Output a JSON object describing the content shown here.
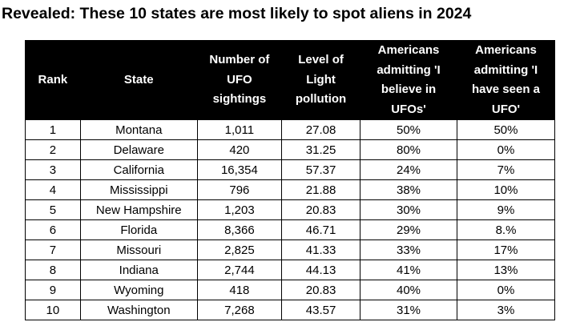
{
  "title": "Revealed: These 10 states are most likely to spot aliens in 2024",
  "table": {
    "headers": [
      "Rank",
      "State",
      "Number of UFO sightings",
      "Level of Light pollution",
      "Americans admitting 'I believe in UFOs'",
      "Americans admitting 'I have seen a UFO'"
    ],
    "rows": [
      [
        "1",
        "Montana",
        "1,011",
        "27.08",
        "50%",
        "50%"
      ],
      [
        "2",
        "Delaware",
        "420",
        "31.25",
        "80%",
        "0%"
      ],
      [
        "3",
        "California",
        "16,354",
        "57.37",
        "24%",
        "7%"
      ],
      [
        "4",
        "Mississippi",
        "796",
        "21.88",
        "38%",
        "10%"
      ],
      [
        "5",
        "New Hampshire",
        "1,203",
        "20.83",
        "30%",
        "9%"
      ],
      [
        "6",
        "Florida",
        "8,366",
        "46.71",
        "29%",
        "8.%"
      ],
      [
        "7",
        "Missouri",
        "2,825",
        "41.33",
        "33%",
        "17%"
      ],
      [
        "8",
        "Indiana",
        "2,744",
        "44.13",
        "41%",
        "13%"
      ],
      [
        "9",
        "Wyoming",
        "418",
        "20.83",
        "40%",
        "0%"
      ],
      [
        "10",
        "Washington",
        "7,268",
        "43.57",
        "31%",
        "3%"
      ]
    ]
  }
}
